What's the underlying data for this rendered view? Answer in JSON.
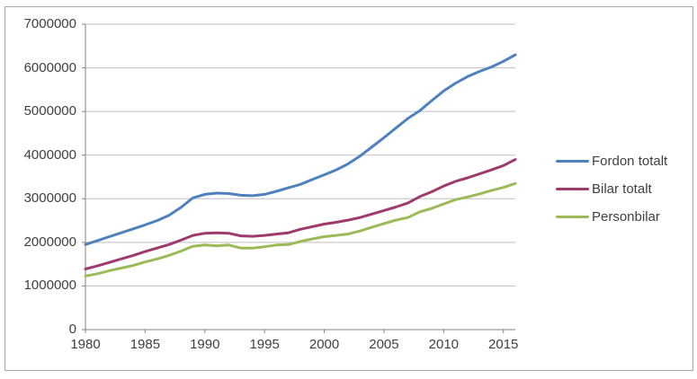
{
  "chart_data": {
    "type": "line",
    "title": "",
    "xlabel": "",
    "ylabel": "",
    "x": [
      1980,
      1981,
      1982,
      1983,
      1984,
      1985,
      1986,
      1987,
      1988,
      1989,
      1990,
      1991,
      1992,
      1993,
      1994,
      1995,
      1996,
      1997,
      1998,
      1999,
      2000,
      2001,
      2002,
      2003,
      2004,
      2005,
      2006,
      2007,
      2008,
      2009,
      2010,
      2011,
      2012,
      2013,
      2014,
      2015,
      2016
    ],
    "series": [
      {
        "name": "Fordon totalt",
        "color": "#4F81BD",
        "values": [
          1950000,
          2040000,
          2130000,
          2220000,
          2310000,
          2400000,
          2500000,
          2620000,
          2800000,
          3020000,
          3100000,
          3130000,
          3120000,
          3080000,
          3070000,
          3100000,
          3170000,
          3250000,
          3330000,
          3440000,
          3550000,
          3660000,
          3800000,
          3980000,
          4190000,
          4400000,
          4620000,
          4840000,
          5020000,
          5250000,
          5470000,
          5650000,
          5800000,
          5920000,
          6020000,
          6150000,
          6300000
        ]
      },
      {
        "name": "Bilar totalt",
        "color": "#9E3B6E",
        "values": [
          1390000,
          1460000,
          1540000,
          1620000,
          1700000,
          1790000,
          1870000,
          1950000,
          2050000,
          2160000,
          2210000,
          2220000,
          2210000,
          2150000,
          2140000,
          2160000,
          2190000,
          2220000,
          2300000,
          2360000,
          2420000,
          2460000,
          2510000,
          2570000,
          2650000,
          2730000,
          2810000,
          2900000,
          3050000,
          3160000,
          3290000,
          3400000,
          3480000,
          3570000,
          3660000,
          3760000,
          3900000
        ]
      },
      {
        "name": "Personbilar",
        "color": "#9BBB59",
        "values": [
          1230000,
          1280000,
          1350000,
          1410000,
          1470000,
          1550000,
          1620000,
          1700000,
          1800000,
          1910000,
          1940000,
          1920000,
          1940000,
          1870000,
          1870000,
          1900000,
          1940000,
          1950000,
          2020000,
          2080000,
          2130000,
          2160000,
          2190000,
          2260000,
          2350000,
          2430000,
          2510000,
          2570000,
          2700000,
          2780000,
          2880000,
          2980000,
          3040000,
          3110000,
          3190000,
          3260000,
          3350000
        ]
      }
    ],
    "ylim": [
      0,
      7000000
    ],
    "y_tick_interval": 1000000,
    "y_tick_labels": [
      "0",
      "1000000",
      "2000000",
      "3000000",
      "4000000",
      "5000000",
      "6000000",
      "7000000"
    ],
    "x_tick_labels": [
      "1980",
      "1985",
      "1990",
      "1995",
      "2000",
      "2005",
      "2010",
      "2015"
    ],
    "grid": "horizontal",
    "legend_position": "right",
    "colors": {
      "gridline": "#BFBFBF",
      "axis": "#808080",
      "text": "#404040",
      "frame_border": "#A6A6A6",
      "background": "#FFFFFF"
    }
  }
}
